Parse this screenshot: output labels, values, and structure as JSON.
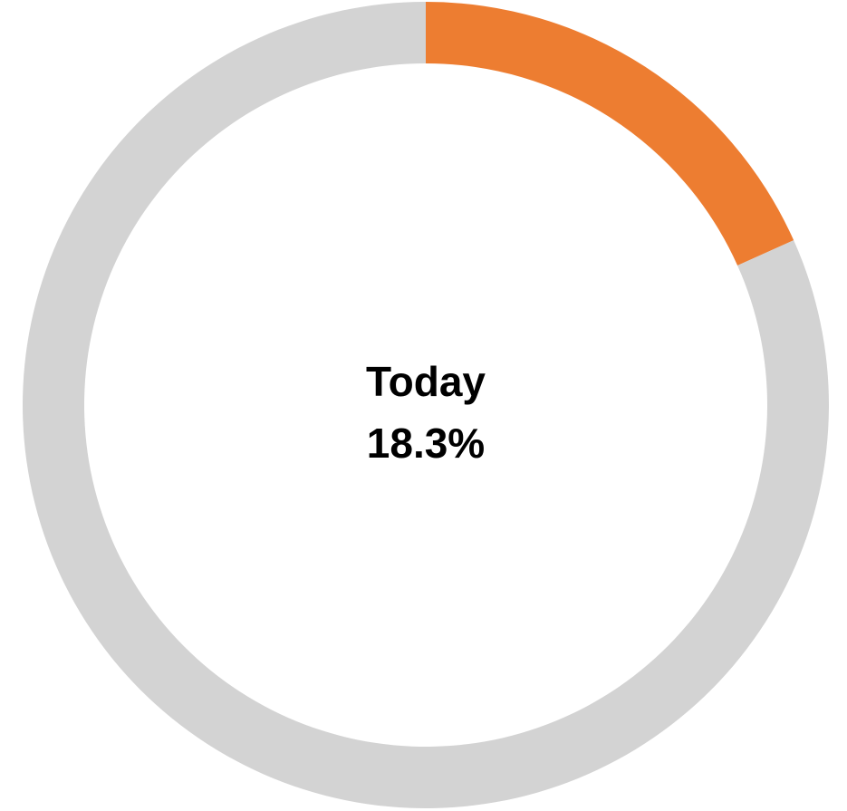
{
  "chart_data": {
    "type": "donut",
    "center_label": "Today",
    "values": [
      18.3,
      81.7
    ],
    "value_labels": [
      "18.3%",
      null
    ],
    "colors": [
      "#ed7d31",
      "#d3d3d3"
    ]
  }
}
